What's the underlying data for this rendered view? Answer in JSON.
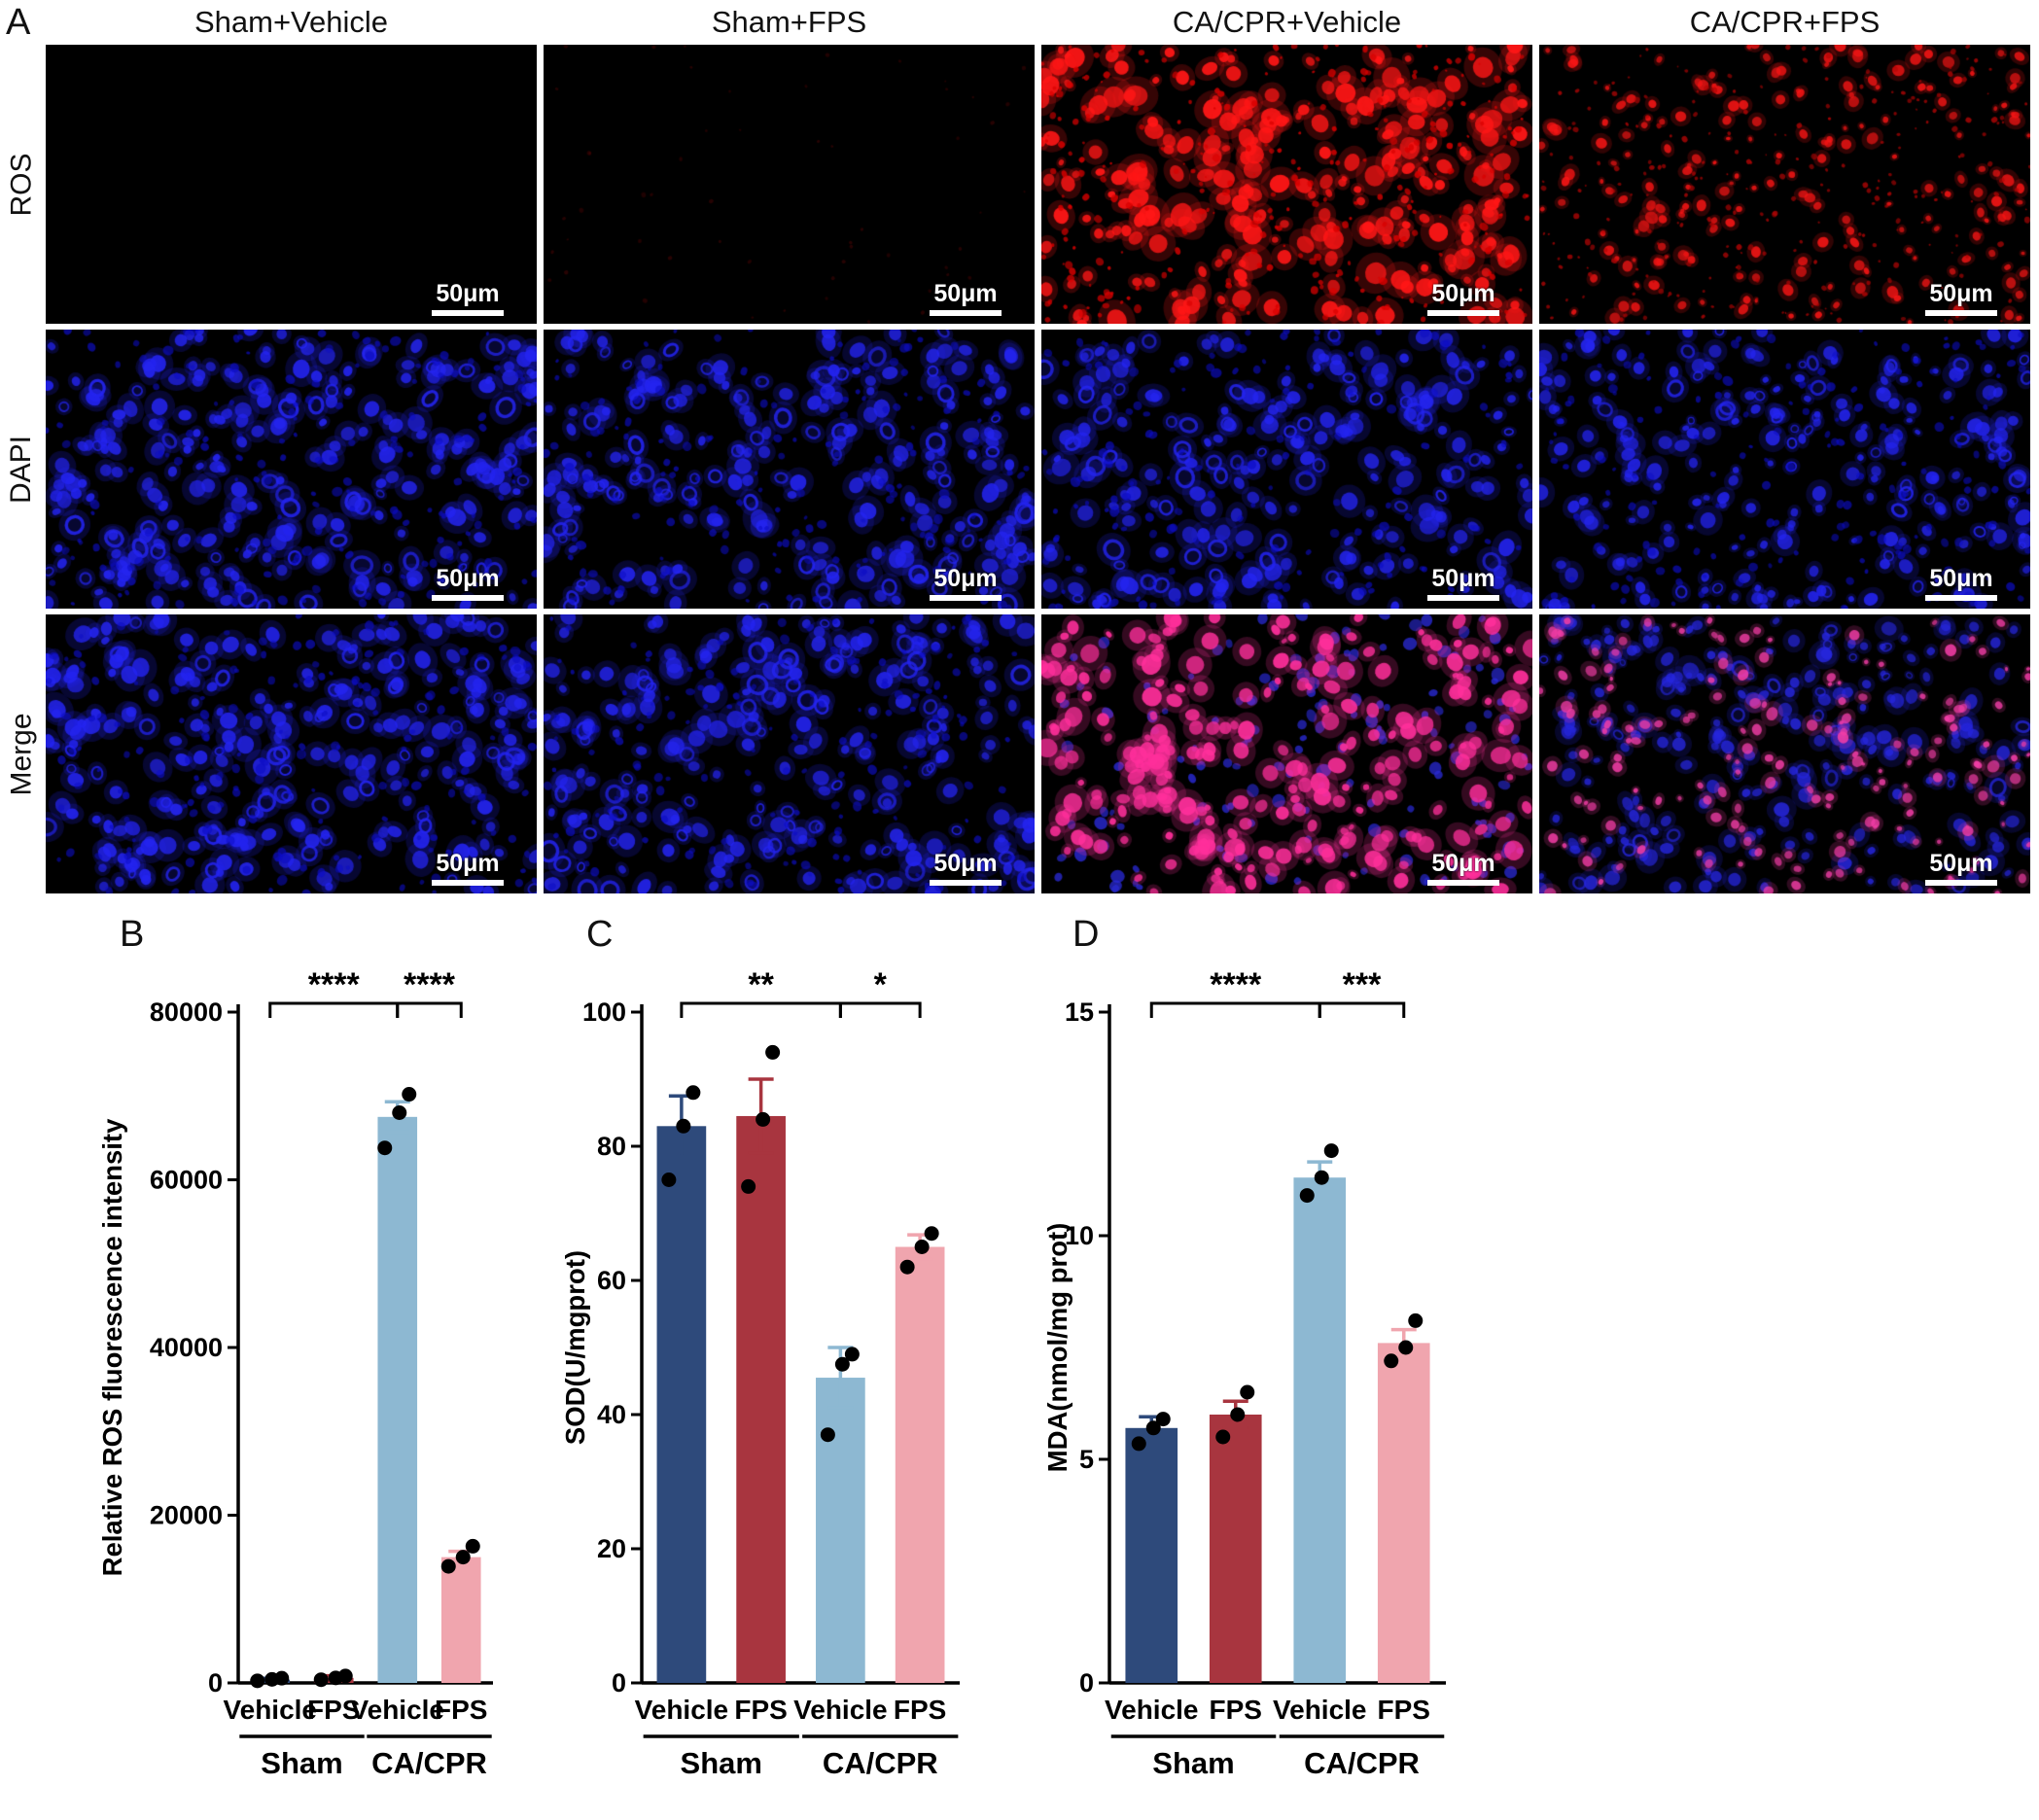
{
  "panels": {
    "a": "A",
    "b": "B",
    "c": "C",
    "d": "D"
  },
  "panel_a": {
    "col_headers": [
      "Sham+Vehicle",
      "Sham+FPS",
      "CA/CPR+Vehicle",
      "CA/CPR+FPS"
    ],
    "row_labels": [
      "ROS",
      "DAPI",
      "Merge"
    ],
    "scale_bar_label": "50μm",
    "cells": [
      [
        {
          "name": "ros-sham-vehicle",
          "layers": []
        },
        {
          "name": "ros-sham-fps",
          "layers": [
            {
              "color": "#4a0505",
              "count": 55,
              "rmin": 1,
              "rmax": 2.5,
              "alpha": 0.55
            }
          ]
        },
        {
          "name": "ros-cacpr-vehicle",
          "layers": [
            {
              "color": "#ff1616",
              "count": 250,
              "rmin": 3,
              "rmax": 11,
              "alpha": 0.95,
              "glow": true
            },
            {
              "color": "#d90000",
              "count": 310,
              "rmin": 1,
              "rmax": 4,
              "alpha": 0.85
            }
          ]
        },
        {
          "name": "ros-cacpr-fps",
          "layers": [
            {
              "color": "#f51515",
              "count": 200,
              "rmin": 2,
              "rmax": 6,
              "alpha": 0.9,
              "glow": true
            },
            {
              "color": "#b40505",
              "count": 260,
              "rmin": 1,
              "rmax": 3,
              "alpha": 0.8
            }
          ]
        }
      ],
      [
        {
          "name": "dapi-sham-vehicle",
          "layers": [
            {
              "color": "#2424ef",
              "count": 250,
              "rmin": 4,
              "rmax": 9,
              "alpha": 0.92,
              "hollow": 0.2,
              "glow": true
            },
            {
              "color": "#0d0dc4",
              "count": 175,
              "rmin": 2,
              "rmax": 5,
              "alpha": 0.7
            }
          ]
        },
        {
          "name": "dapi-sham-fps",
          "layers": [
            {
              "color": "#2424ef",
              "count": 230,
              "rmin": 4,
              "rmax": 9,
              "alpha": 0.9,
              "hollow": 0.3,
              "glow": true
            },
            {
              "color": "#0d0dc4",
              "count": 160,
              "rmin": 2,
              "rmax": 5,
              "alpha": 0.7
            }
          ]
        },
        {
          "name": "dapi-cacpr-vehicle",
          "layers": [
            {
              "color": "#2424ef",
              "count": 215,
              "rmin": 4,
              "rmax": 9,
              "alpha": 0.9,
              "hollow": 0.2,
              "glow": true
            },
            {
              "color": "#0d0dc4",
              "count": 150,
              "rmin": 2,
              "rmax": 5,
              "alpha": 0.7
            }
          ]
        },
        {
          "name": "dapi-cacpr-fps",
          "layers": [
            {
              "color": "#2424ef",
              "count": 230,
              "rmin": 3,
              "rmax": 8,
              "alpha": 0.9,
              "hollow": 0.2,
              "glow": true
            },
            {
              "color": "#0d0dc4",
              "count": 165,
              "rmin": 2,
              "rmax": 5,
              "alpha": 0.7
            }
          ]
        }
      ],
      [
        {
          "name": "merge-sham-vehicle",
          "layers": [
            {
              "color": "#2424ef",
              "count": 250,
              "rmin": 4,
              "rmax": 9,
              "alpha": 0.92,
              "hollow": 0.2,
              "glow": true
            },
            {
              "color": "#0d0dc4",
              "count": 175,
              "rmin": 2,
              "rmax": 5,
              "alpha": 0.7
            }
          ]
        },
        {
          "name": "merge-sham-fps",
          "layers": [
            {
              "color": "#2424ef",
              "count": 230,
              "rmin": 4,
              "rmax": 9,
              "alpha": 0.9,
              "hollow": 0.3,
              "glow": true
            },
            {
              "color": "#0d0dc4",
              "count": 160,
              "rmin": 2,
              "rmax": 5,
              "alpha": 0.7
            }
          ]
        },
        {
          "name": "merge-cacpr-vehicle",
          "layers": [
            {
              "color": "#2a2ad8",
              "count": 150,
              "rmin": 3,
              "rmax": 7,
              "alpha": 0.8
            },
            {
              "color": "#ff2f9b",
              "count": 255,
              "rmin": 3,
              "rmax": 10,
              "alpha": 0.93,
              "glow": true
            }
          ]
        },
        {
          "name": "merge-cacpr-fps",
          "layers": [
            {
              "color": "#2626dd",
              "count": 225,
              "rmin": 3,
              "rmax": 8,
              "alpha": 0.85,
              "hollow": 0.15,
              "glow": true
            },
            {
              "color": "#f23da6",
              "count": 175,
              "rmin": 2,
              "rmax": 6,
              "alpha": 0.88,
              "glow": true
            }
          ]
        }
      ]
    ]
  },
  "chart_data": [
    {
      "panel": "B",
      "type": "bar",
      "title": "",
      "ylabel": "Relative ROS fluorescence intensity",
      "xlabel": "",
      "categories": [
        "Vehicle",
        "FPS",
        "Vehicle",
        "FPS"
      ],
      "groups": [
        {
          "label": "Sham",
          "from": 0,
          "to": 1
        },
        {
          "label": "CA/CPR",
          "from": 2,
          "to": 3
        }
      ],
      "values": [
        400,
        600,
        67500,
        15000
      ],
      "errors": [
        150,
        250,
        1800,
        700
      ],
      "points": [
        [
          250,
          420,
          560
        ],
        [
          380,
          600,
          820
        ],
        [
          63800,
          68000,
          70200
        ],
        [
          13900,
          15000,
          16300
        ]
      ],
      "ylim": [
        0,
        80000
      ],
      "yticks": [
        0,
        20000,
        40000,
        60000,
        80000
      ],
      "bar_colors": [
        "#2e4a7b",
        "#a8353f",
        "#8db8d2",
        "#f0a5ae"
      ],
      "grid": false,
      "legend": "none",
      "significance": [
        {
          "from": 0,
          "to": 2,
          "label": "****"
        },
        {
          "from": 2,
          "to": 3,
          "label": "****"
        }
      ],
      "margin_left": 150,
      "ylabel_x": 30
    },
    {
      "panel": "C",
      "type": "bar",
      "title": "",
      "ylabel": "SOD(U/mgprot)",
      "xlabel": "",
      "categories": [
        "Vehicle",
        "FPS",
        "Vehicle",
        "FPS"
      ],
      "groups": [
        {
          "label": "Sham",
          "from": 0,
          "to": 1
        },
        {
          "label": "CA/CPR",
          "from": 2,
          "to": 3
        }
      ],
      "values": [
        83,
        84.5,
        45.5,
        65
      ],
      "errors": [
        4.5,
        5.5,
        4.5,
        1.8
      ],
      "points": [
        [
          75,
          83,
          88
        ],
        [
          74,
          84,
          94
        ],
        [
          37,
          47.5,
          49
        ],
        [
          62,
          65,
          67
        ]
      ],
      "ylim": [
        0,
        100
      ],
      "yticks": [
        0,
        20,
        40,
        60,
        80,
        100
      ],
      "bar_colors": [
        "#2e4a7b",
        "#a8353f",
        "#8db8d2",
        "#f0a5ae"
      ],
      "grid": false,
      "legend": "none",
      "significance": [
        {
          "from": 0,
          "to": 2,
          "label": "**"
        },
        {
          "from": 2,
          "to": 3,
          "label": "*"
        }
      ],
      "margin_left": 85,
      "ylabel_x": 26
    },
    {
      "panel": "D",
      "type": "bar",
      "title": "",
      "ylabel": "MDA(nmol/mg prot)",
      "xlabel": "",
      "categories": [
        "Vehicle",
        "FPS",
        "Vehicle",
        "FPS"
      ],
      "groups": [
        {
          "label": "Sham",
          "from": 0,
          "to": 1
        },
        {
          "label": "CA/CPR",
          "from": 2,
          "to": 3
        }
      ],
      "values": [
        5.7,
        6.0,
        11.3,
        7.6
      ],
      "errors": [
        0.25,
        0.3,
        0.35,
        0.3
      ],
      "points": [
        [
          5.35,
          5.7,
          5.9
        ],
        [
          5.5,
          6.0,
          6.5
        ],
        [
          10.9,
          11.3,
          11.9
        ],
        [
          7.2,
          7.5,
          8.1
        ]
      ],
      "ylim": [
        0,
        15
      ],
      "yticks": [
        0,
        5,
        10,
        15
      ],
      "bar_colors": [
        "#2e4a7b",
        "#a8353f",
        "#8db8d2",
        "#f0a5ae"
      ],
      "grid": false,
      "legend": "none",
      "significance": [
        {
          "from": 0,
          "to": 2,
          "label": "****"
        },
        {
          "from": 2,
          "to": 3,
          "label": "***"
        }
      ],
      "margin_left": 66,
      "ylabel_x": 22
    }
  ]
}
